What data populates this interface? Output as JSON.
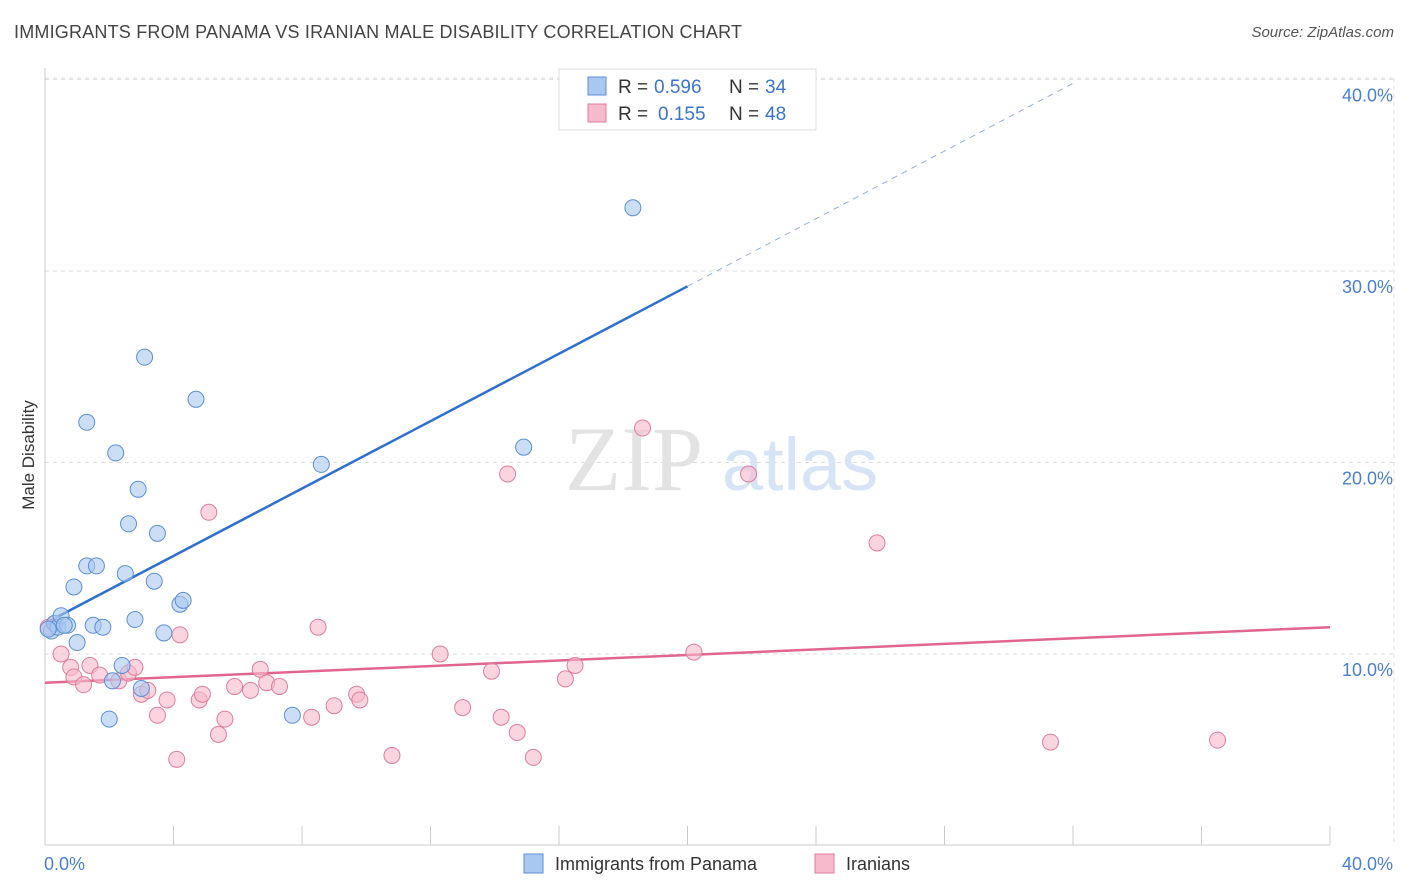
{
  "header": {
    "title": "IMMIGRANTS FROM PANAMA VS IRANIAN MALE DISABILITY CORRELATION CHART",
    "source": "Source: ZipAtlas.com"
  },
  "watermark": {
    "zip": "ZIP",
    "atlas": "atlas"
  },
  "stats_legend": [
    {
      "r_label": "R =",
      "r_value": "0.596",
      "n_label": "N =",
      "n_value": "34"
    },
    {
      "r_label": "R =",
      "r_value": "0.155",
      "n_label": "N =",
      "n_value": "48"
    }
  ],
  "chart_data": {
    "type": "scatter",
    "title": "IMMIGRANTS FROM PANAMA VS IRANIAN MALE DISABILITY CORRELATION CHART",
    "xlabel": "",
    "ylabel": "Male Disability",
    "xlim": [
      0,
      40
    ],
    "ylim": [
      1.0,
      41.0
    ],
    "x_tick_labels": [
      "0.0%",
      "40.0%"
    ],
    "y_ticks": [
      10,
      20,
      30,
      40
    ],
    "y_tick_labels": [
      "10.0%",
      "20.0%",
      "30.0%",
      "40.0%"
    ],
    "grid": true,
    "legend_position": "bottom-center",
    "colors": {
      "panama_fill": "#a9c8f0",
      "panama_stroke": "#5b8fd4",
      "panama_line": "#2f6fd0",
      "iranian_fill": "#f7b9cc",
      "iranian_stroke": "#e07c9c",
      "iranian_line": "#e0668f",
      "axis_blue": "#4a7fd0",
      "grid": "#dddddd"
    },
    "series": [
      {
        "name": "Immigrants from Panama",
        "points": [
          [
            0.2,
            11.2
          ],
          [
            0.3,
            11.6
          ],
          [
            0.4,
            11.4
          ],
          [
            0.5,
            12.0
          ],
          [
            0.7,
            11.5
          ],
          [
            0.9,
            13.5
          ],
          [
            1.0,
            10.6
          ],
          [
            1.3,
            22.1
          ],
          [
            1.3,
            14.6
          ],
          [
            1.5,
            11.5
          ],
          [
            1.6,
            14.6
          ],
          [
            1.8,
            11.4
          ],
          [
            2.0,
            6.6
          ],
          [
            2.1,
            8.6
          ],
          [
            2.2,
            20.5
          ],
          [
            2.4,
            9.4
          ],
          [
            2.5,
            14.2
          ],
          [
            2.6,
            16.8
          ],
          [
            2.8,
            11.8
          ],
          [
            2.9,
            18.6
          ],
          [
            3.0,
            8.2
          ],
          [
            3.1,
            25.5
          ],
          [
            3.4,
            13.8
          ],
          [
            3.5,
            16.3
          ],
          [
            3.7,
            11.1
          ],
          [
            4.2,
            12.6
          ],
          [
            4.3,
            12.8
          ],
          [
            4.7,
            23.3
          ],
          [
            7.7,
            6.8
          ],
          [
            8.6,
            19.9
          ],
          [
            14.9,
            20.8
          ],
          [
            18.3,
            33.3
          ],
          [
            0.1,
            11.3
          ],
          [
            0.6,
            11.5
          ]
        ],
        "trend": {
          "x_start": 0.0,
          "y_start": 11.6,
          "x_solid_end": 20.0,
          "y_solid_end": 29.2,
          "x_dash_end": 32.0,
          "y_dash_end": 39.8
        }
      },
      {
        "name": "Iranians",
        "points": [
          [
            0.3,
            11.6
          ],
          [
            0.5,
            10.0
          ],
          [
            0.8,
            9.3
          ],
          [
            0.9,
            8.8
          ],
          [
            1.2,
            8.4
          ],
          [
            1.4,
            9.4
          ],
          [
            1.7,
            8.9
          ],
          [
            2.3,
            8.6
          ],
          [
            2.6,
            9.0
          ],
          [
            2.8,
            9.3
          ],
          [
            3.0,
            7.9
          ],
          [
            3.2,
            8.1
          ],
          [
            3.5,
            6.8
          ],
          [
            3.8,
            7.6
          ],
          [
            4.1,
            4.5
          ],
          [
            4.2,
            11.0
          ],
          [
            4.8,
            7.6
          ],
          [
            4.9,
            7.9
          ],
          [
            5.1,
            17.4
          ],
          [
            5.4,
            5.8
          ],
          [
            5.6,
            6.6
          ],
          [
            5.9,
            8.3
          ],
          [
            6.4,
            8.1
          ],
          [
            6.7,
            9.2
          ],
          [
            6.9,
            8.5
          ],
          [
            7.3,
            8.3
          ],
          [
            8.3,
            6.7
          ],
          [
            8.5,
            11.4
          ],
          [
            9.0,
            7.3
          ],
          [
            9.7,
            7.9
          ],
          [
            9.8,
            7.6
          ],
          [
            10.8,
            4.7
          ],
          [
            12.3,
            10.0
          ],
          [
            13.0,
            7.2
          ],
          [
            13.9,
            9.1
          ],
          [
            14.2,
            6.7
          ],
          [
            14.4,
            19.4
          ],
          [
            14.7,
            5.9
          ],
          [
            15.2,
            4.6
          ],
          [
            16.2,
            8.7
          ],
          [
            16.5,
            9.4
          ],
          [
            18.6,
            21.8
          ],
          [
            20.2,
            10.1
          ],
          [
            21.9,
            19.4
          ],
          [
            25.9,
            15.8
          ],
          [
            31.3,
            5.4
          ],
          [
            36.5,
            5.5
          ],
          [
            0.1,
            11.4
          ]
        ],
        "trend": {
          "x_start": 0.0,
          "y_start": 8.5,
          "x_end": 40.0,
          "y_end": 11.4
        }
      }
    ]
  }
}
